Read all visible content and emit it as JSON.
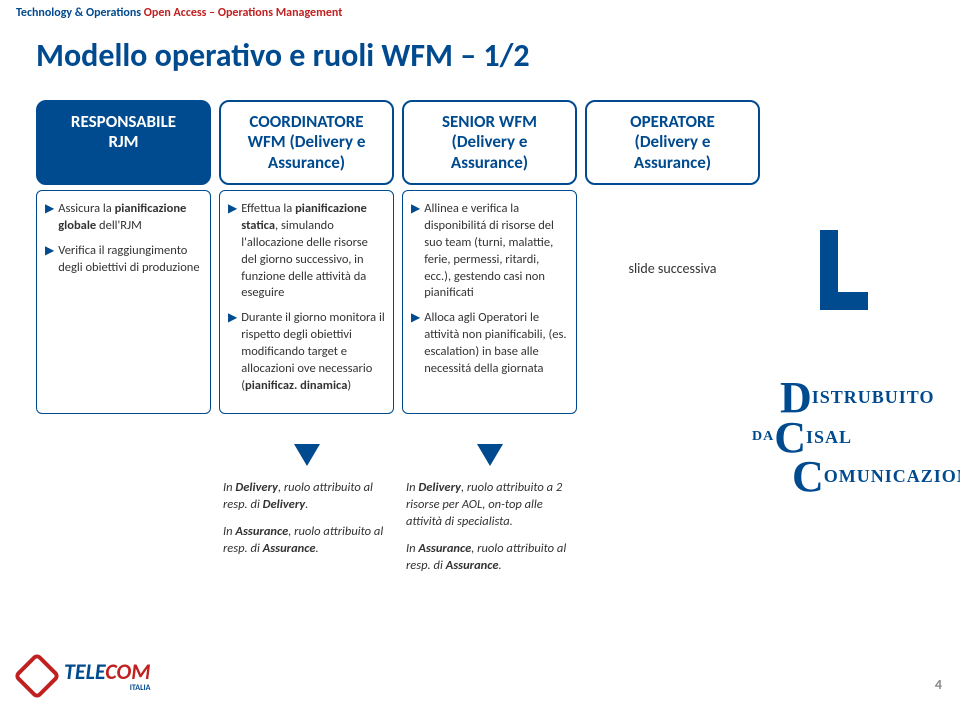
{
  "breadcrumb": {
    "part1": "Technology & Operations",
    "part2": "Open Access – Operations Management"
  },
  "title": "Modello operativo e ruoli WFM – 1/2",
  "roles": [
    {
      "label": "RESPONSABILE\nRJM",
      "style": "filled"
    },
    {
      "label": "COORDINATORE\nWFM (Delivery e\nAssurance)",
      "style": "outlined"
    },
    {
      "label": "SENIOR WFM\n(Delivery e\nAssurance)",
      "style": "outlined"
    },
    {
      "label": "OPERATORE\n(Delivery e\nAssurance)",
      "style": "outlined"
    }
  ],
  "details": {
    "col0": [
      "Assicura la pianificazione globale dell'RJM",
      "Verifica il raggiungimento degli obiettivi di produzione"
    ],
    "col1": [
      "Effettua la pianificazione statica, simulando l'allocazione delle risorse del giorno successivo, in funzione delle attività da eseguire",
      "Durante il giorno monitora il rispetto degli obiettivi modificando target e allocazioni ove necessario (pianificaz. dinamica)"
    ],
    "col2": [
      "Allinea e verifica la disponibilitá di risorse del suo team (turni, malattie, ferie, permessi, ritardi, ecc.), gestendo casi non pianificati",
      "Alloca agli Operatori le attività non pianificabili, (es. escalation) in base alle necessitá della giornata"
    ],
    "col3": "slide successiva"
  },
  "attributions": {
    "col1": {
      "p1": "In Delivery, ruolo attribuito al resp. di Delivery.",
      "p2": "In Assurance, ruolo attribuito al resp. di Assurance."
    },
    "col2": {
      "p1": "In Delivery, ruolo attribuito a 2 risorse per AOL, on-top alle attività di specialista.",
      "p2": "In Assurance, ruolo attribuito al resp. di Assurance."
    }
  },
  "dcc": {
    "row1": {
      "big": "D",
      "small": "ISTRUBUITO"
    },
    "row2": {
      "big": "C",
      "small": "ISAL",
      "prefix": "DA "
    },
    "row3": {
      "big": "C",
      "small": "OMUNICAZIONE"
    }
  },
  "logo": {
    "tele": "TELE",
    "com": "COM",
    "sub": "ITALIA"
  },
  "pageno": "4",
  "colors": {
    "primary": "#004a8f",
    "accent": "#c02020",
    "text": "#333333",
    "muted": "#888888"
  }
}
